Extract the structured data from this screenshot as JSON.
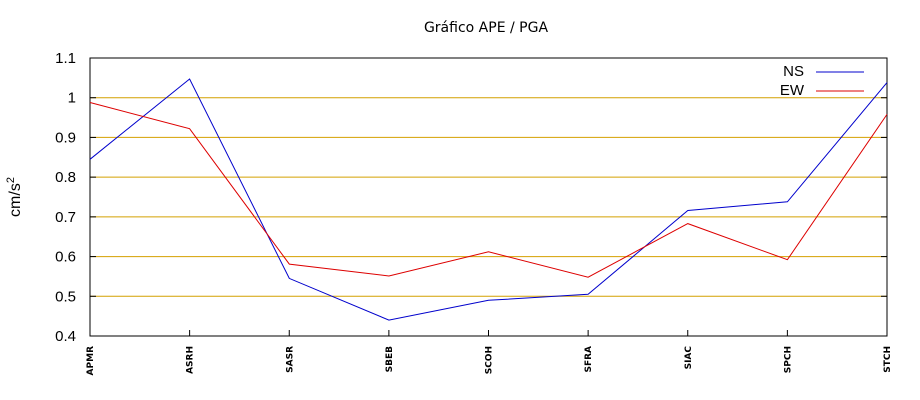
{
  "chart_data": {
    "type": "line",
    "title": "Gráfico  APE / PGA",
    "xlabel": "",
    "ylabel": "cm/s",
    "ylabel_superscript": "2",
    "categories": [
      "APMR",
      "ASRH",
      "SASR",
      "SBEB",
      "SCOH",
      "SFRA",
      "SIAC",
      "SPCH",
      "STCH"
    ],
    "series": [
      {
        "name": "NS",
        "color": "#0000cc",
        "values": [
          0.845,
          1.047,
          0.545,
          0.44,
          0.49,
          0.505,
          0.716,
          0.738,
          1.038
        ]
      },
      {
        "name": "EW",
        "color": "#dd0000",
        "values": [
          0.988,
          0.922,
          0.581,
          0.551,
          0.612,
          0.548,
          0.683,
          0.592,
          0.958
        ]
      }
    ],
    "ylim": [
      0.4,
      1.1
    ],
    "yticks": [
      "0.4",
      "0.5",
      "0.6",
      "0.7",
      "0.8",
      "0.9",
      "1",
      "1.1"
    ],
    "grid": true,
    "grid_color": "#d4a000",
    "legend_position": "top-right"
  }
}
